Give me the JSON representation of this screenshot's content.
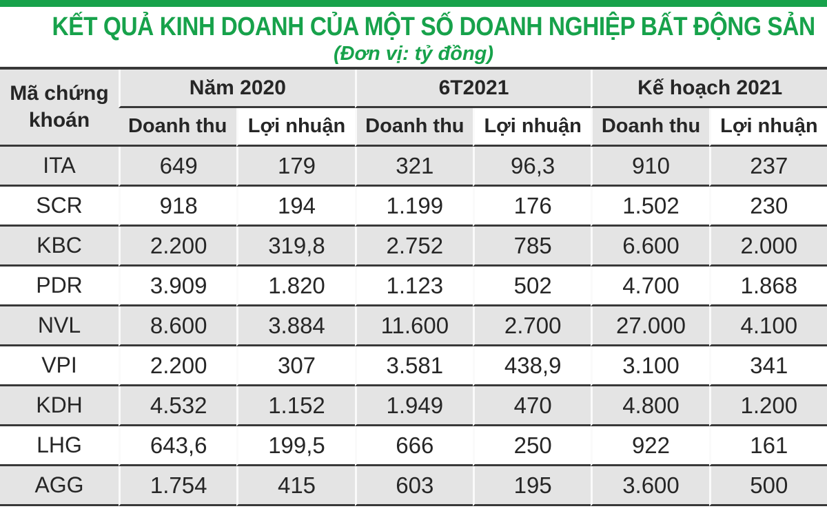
{
  "chart_data": {
    "type": "table",
    "title": "KẾT QUẢ KINH DOANH CỦA MỘT SỐ DOANH NGHIỆP BẤT ĐỘNG SẢN",
    "subtitle": "(Đơn vị: tỷ đồng)",
    "unit": "tỷ đồng",
    "stock_column_header": "Mã chứng khoán",
    "column_groups": [
      "Năm 2020",
      "6T2021",
      "Kế hoạch 2021"
    ],
    "sub_columns": [
      "Doanh thu",
      "Lợi nhuận"
    ],
    "rows": [
      {
        "code": "ITA",
        "values": [
          "649",
          "179",
          "321",
          "96,3",
          "910",
          "237"
        ]
      },
      {
        "code": "SCR",
        "values": [
          "918",
          "194",
          "1.199",
          "176",
          "1.502",
          "230"
        ]
      },
      {
        "code": "KBC",
        "values": [
          "2.200",
          "319,8",
          "2.752",
          "785",
          "6.600",
          "2.000"
        ]
      },
      {
        "code": "PDR",
        "values": [
          "3.909",
          "1.820",
          "1.123",
          "502",
          "4.700",
          "1.868"
        ]
      },
      {
        "code": "NVL",
        "values": [
          "8.600",
          "3.884",
          "11.600",
          "2.700",
          "27.000",
          "4.100"
        ]
      },
      {
        "code": "VPI",
        "values": [
          "2.200",
          "307",
          "3.581",
          "438,9",
          "3.100",
          "341"
        ]
      },
      {
        "code": "KDH",
        "values": [
          "4.532",
          "1.152",
          "1.949",
          "470",
          "4.800",
          "1.200"
        ]
      },
      {
        "code": "LHG",
        "values": [
          "643,6",
          "199,5",
          "666",
          "250",
          "922",
          "161"
        ]
      },
      {
        "code": "AGG",
        "values": [
          "1.754",
          "415",
          "603",
          "195",
          "3.600",
          "500"
        ]
      }
    ]
  },
  "colors": {
    "accent_green": "#17A24B",
    "row_shade_gray": "#E4E4E4",
    "rule_dark": "#383838",
    "text_dark": "#262626"
  }
}
